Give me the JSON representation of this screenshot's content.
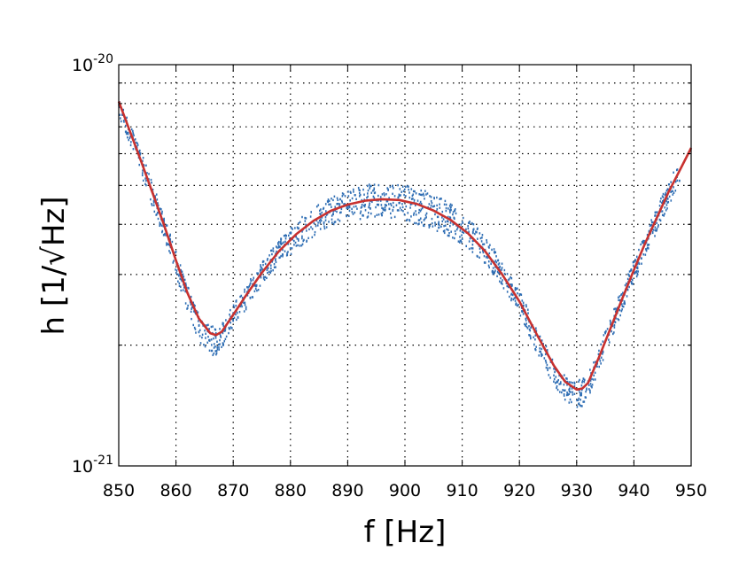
{
  "chart_data": {
    "type": "scatter",
    "title": "",
    "xlabel": "f [Hz]",
    "ylabel": "h [1/√Hz]",
    "xlim": [
      850,
      950
    ],
    "ylim": [
      1e-21,
      1e-20
    ],
    "yscale": "log",
    "grid": true,
    "xticks": [
      850,
      860,
      870,
      880,
      890,
      900,
      910,
      920,
      930,
      940,
      950
    ],
    "xtick_labels": [
      "850",
      "860",
      "870",
      "880",
      "890",
      "900",
      "910",
      "920",
      "930",
      "940",
      "950"
    ],
    "ytick_labels": [
      {
        "value": 1e-21,
        "base": "10",
        "exp": "-21"
      },
      {
        "value": 1e-20,
        "base": "10",
        "exp": "-20"
      }
    ],
    "yminor_ticks": [
      2e-21,
      3e-21,
      4e-21,
      5e-21,
      6e-21,
      7e-21,
      8e-21,
      9e-21
    ],
    "series": [
      {
        "kind": "scatter",
        "color": "#2f6eb4",
        "x": [
          850,
          852,
          854,
          856,
          858,
          860,
          862,
          864,
          866,
          867,
          868,
          870,
          872,
          875,
          878,
          881,
          884,
          887,
          890,
          893,
          896,
          899,
          902,
          905,
          908,
          911,
          914,
          917,
          920,
          923,
          926,
          928,
          930,
          931,
          932,
          934,
          936,
          938,
          940,
          942,
          944,
          946,
          948
        ],
        "y": [
          8e-21,
          6.7e-21,
          5.6e-21,
          4.7e-21,
          3.9e-21,
          3.2e-21,
          2.6e-21,
          2.22e-21,
          2.05e-21,
          2.05e-21,
          2.1e-21,
          2.35e-21,
          2.6e-21,
          3e-21,
          3.4e-21,
          3.75e-21,
          4.05e-21,
          4.3e-21,
          4.45e-21,
          4.55e-21,
          4.6e-21,
          4.55e-21,
          4.45e-21,
          4.3e-21,
          4.1e-21,
          3.8e-21,
          3.45e-21,
          3e-21,
          2.55e-21,
          2.05e-21,
          1.7e-21,
          1.56e-21,
          1.5e-21,
          1.52e-21,
          1.58e-21,
          1.85e-21,
          2.2e-21,
          2.6e-21,
          3.05e-21,
          3.55e-21,
          4.1e-21,
          4.75e-21,
          5.4e-21
        ],
        "spread": [
          0.1,
          0.1,
          0.1,
          0.1,
          0.1,
          0.1,
          0.12,
          0.12,
          0.12,
          0.12,
          0.1,
          0.1,
          0.1,
          0.1,
          0.1,
          0.12,
          0.12,
          0.12,
          0.14,
          0.14,
          0.14,
          0.14,
          0.15,
          0.15,
          0.14,
          0.12,
          0.12,
          0.1,
          0.1,
          0.1,
          0.1,
          0.1,
          0.12,
          0.12,
          0.1,
          0.1,
          0.1,
          0.1,
          0.1,
          0.1,
          0.1,
          0.1,
          0.1
        ]
      },
      {
        "kind": "line",
        "color": "#c8312f",
        "x": [
          850,
          852,
          854,
          856,
          858,
          860,
          862,
          864,
          866,
          867,
          868,
          870,
          872,
          875,
          878,
          881,
          884,
          887,
          890,
          893,
          896,
          899,
          902,
          905,
          908,
          911,
          914,
          917,
          920,
          923,
          926,
          928,
          930,
          931,
          932,
          934,
          936,
          938,
          940,
          942,
          944,
          946,
          948,
          950
        ],
        "y": [
          8.1e-21,
          6.8e-21,
          5.7e-21,
          4.75e-21,
          3.95e-21,
          3.25e-21,
          2.7e-21,
          2.33e-21,
          2.14e-21,
          2.12e-21,
          2.16e-21,
          2.38e-21,
          2.63e-21,
          3.03e-21,
          3.43e-21,
          3.78e-21,
          4.08e-21,
          4.32e-21,
          4.48e-21,
          4.58e-21,
          4.62e-21,
          4.6e-21,
          4.5e-21,
          4.33e-21,
          4.1e-21,
          3.8e-21,
          3.43e-21,
          3e-21,
          2.57e-21,
          2.13e-21,
          1.78e-21,
          1.62e-21,
          1.55e-21,
          1.56e-21,
          1.61e-21,
          1.88e-21,
          2.22e-21,
          2.62e-21,
          3.08e-21,
          3.6e-21,
          4.15e-21,
          4.8e-21,
          5.45e-21,
          6.2e-21
        ]
      }
    ]
  }
}
